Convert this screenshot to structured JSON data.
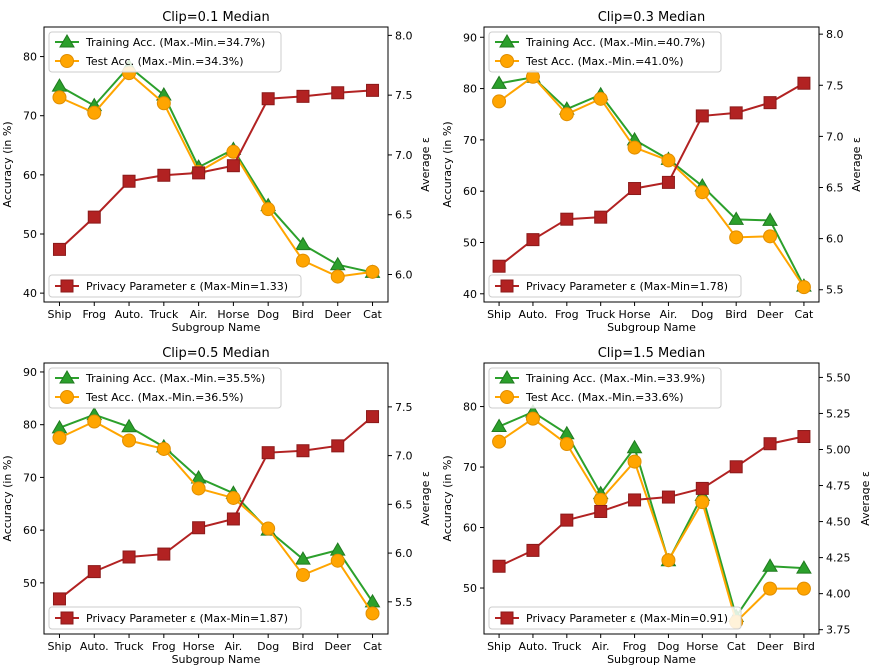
{
  "chart_data": [
    {
      "type": "line",
      "title": "Clip=0.1 Median",
      "xlabel": "Subgroup Name",
      "ylabel": "Accuracy (in %)",
      "y2label": "Average ε",
      "categories": [
        "Ship",
        "Frog",
        "Auto.",
        "Truck",
        "Air.",
        "Horse",
        "Dog",
        "Bird",
        "Deer",
        "Cat"
      ],
      "ylim": [
        38.5,
        85
      ],
      "y2lim": [
        5.77,
        8.07
      ],
      "yticks": [
        "40",
        "50",
        "60",
        "70",
        "80"
      ],
      "y2ticks": [
        "6.0",
        "6.5",
        "7.0",
        "7.5",
        "8.0"
      ],
      "legend_top": "top-left",
      "legend_bottom": "bottom-left",
      "series": [
        {
          "name": "Training Acc. (Max.-Min.=34.7%)",
          "axis": "left",
          "marker": "triangle",
          "color": "#2ca02c",
          "edge": "#1f7a1f",
          "values": [
            75.0,
            71.7,
            78.3,
            73.5,
            61.3,
            64.3,
            54.8,
            48.2,
            44.8,
            43.5
          ]
        },
        {
          "name": "Test Acc. (Max.-Min.=34.3%)",
          "axis": "left",
          "marker": "circle",
          "color": "#ffa500",
          "edge": "#e08e00",
          "values": [
            73.1,
            70.5,
            77.2,
            72.1,
            60.5,
            63.9,
            54.2,
            45.5,
            42.8,
            43.6
          ]
        },
        {
          "name": "Privacy Parameter ε (Max-Min=1.33)",
          "axis": "right",
          "marker": "square",
          "color": "#b22222",
          "edge": "#8b1a1a",
          "values": [
            6.21,
            6.48,
            6.78,
            6.83,
            6.85,
            6.91,
            7.47,
            7.49,
            7.52,
            7.54
          ]
        }
      ]
    },
    {
      "type": "line",
      "title": "Clip=0.3 Median",
      "xlabel": "Subgroup Name",
      "ylabel": "Accuracy (in %)",
      "y2label": "Average ε",
      "categories": [
        "Ship",
        "Auto.",
        "Frog",
        "Truck",
        "Horse",
        "Air.",
        "Dog",
        "Bird",
        "Deer",
        "Cat"
      ],
      "ylim": [
        38.4,
        92
      ],
      "y2lim": [
        5.38,
        8.07
      ],
      "yticks": [
        "40",
        "50",
        "60",
        "70",
        "80",
        "90"
      ],
      "y2ticks": [
        "5.5",
        "6.0",
        "6.5",
        "7.0",
        "7.5",
        "8.0"
      ],
      "legend_top": "top-left",
      "legend_bottom": "bottom-left",
      "series": [
        {
          "name": "Training Acc. (Max.-Min.=40.7%)",
          "axis": "left",
          "marker": "triangle",
          "color": "#2ca02c",
          "edge": "#1f7a1f",
          "values": [
            81.0,
            82.2,
            76.0,
            78.8,
            70.0,
            66.2,
            61.0,
            54.5,
            54.3,
            41.5
          ]
        },
        {
          "name": "Test Acc. (Max.-Min.=41.0%)",
          "axis": "left",
          "marker": "circle",
          "color": "#ffa500",
          "edge": "#e08e00",
          "values": [
            77.5,
            82.3,
            75.0,
            78.0,
            68.5,
            66.0,
            59.8,
            51.0,
            51.2,
            41.3
          ]
        },
        {
          "name": "Privacy Parameter ε (Max-Min=1.78)",
          "axis": "right",
          "marker": "square",
          "color": "#b22222",
          "edge": "#8b1a1a",
          "values": [
            5.73,
            5.99,
            6.19,
            6.21,
            6.49,
            6.55,
            7.2,
            7.23,
            7.33,
            7.52
          ]
        }
      ]
    },
    {
      "type": "line",
      "title": "Clip=0.5 Median",
      "xlabel": "Subgroup Name",
      "ylabel": "Accuracy (in %)",
      "y2label": "Average ε",
      "categories": [
        "Ship",
        "Auto.",
        "Truck",
        "Frog",
        "Horse",
        "Air.",
        "Dog",
        "Bird",
        "Deer",
        "Cat"
      ],
      "ylim": [
        40.3,
        91.7
      ],
      "y2lim": [
        5.17,
        7.95
      ],
      "yticks": [
        "50",
        "60",
        "70",
        "80",
        "90"
      ],
      "y2ticks": [
        "5.5",
        "6.0",
        "6.5",
        "7.0",
        "7.5"
      ],
      "legend_top": "top-left",
      "legend_bottom": "bottom-left",
      "series": [
        {
          "name": "Training Acc. (Max.-Min.=35.5%)",
          "axis": "left",
          "marker": "triangle",
          "color": "#2ca02c",
          "edge": "#1f7a1f",
          "values": [
            79.4,
            81.9,
            79.6,
            75.8,
            69.9,
            67.0,
            60.0,
            54.5,
            56.2,
            46.4
          ]
        },
        {
          "name": "Test Acc. (Max.-Min.=36.5%)",
          "axis": "left",
          "marker": "circle",
          "color": "#ffa500",
          "edge": "#e08e00",
          "values": [
            77.5,
            80.6,
            77.0,
            75.4,
            67.9,
            66.1,
            60.3,
            51.5,
            54.2,
            44.2
          ]
        },
        {
          "name": "Privacy Parameter ε (Max-Min=1.87)",
          "axis": "right",
          "marker": "square",
          "color": "#b22222",
          "edge": "#8b1a1a",
          "values": [
            5.53,
            5.81,
            5.96,
            5.99,
            6.26,
            6.35,
            7.03,
            7.05,
            7.1,
            7.4
          ]
        }
      ]
    },
    {
      "type": "line",
      "title": "Clip=1.5 Median",
      "xlabel": "Subgroup Name",
      "ylabel": "Accuracy (in %)",
      "y2label": "Average ε",
      "categories": [
        "Ship",
        "Auto.",
        "Truck",
        "Air.",
        "Frog",
        "Dog",
        "Horse",
        "Cat",
        "Deer",
        "Bird"
      ],
      "ylim": [
        42.4,
        87.2
      ],
      "y2lim": [
        3.72,
        5.6
      ],
      "yticks": [
        "50",
        "60",
        "70",
        "80"
      ],
      "y2ticks": [
        "3.75",
        "4.00",
        "4.25",
        "4.50",
        "4.75",
        "5.00",
        "5.25",
        "5.50"
      ],
      "legend_top": "top-left",
      "legend_bottom": "bottom-left",
      "series": [
        {
          "name": "Training Acc. (Max.-Min.=33.9%)",
          "axis": "left",
          "marker": "triangle",
          "color": "#2ca02c",
          "edge": "#1f7a1f",
          "values": [
            76.7,
            79.1,
            75.5,
            65.6,
            73.2,
            54.5,
            65.3,
            45.3,
            53.6,
            53.3
          ]
        },
        {
          "name": "Test Acc. (Max.-Min.=33.6%)",
          "axis": "left",
          "marker": "circle",
          "color": "#ffa500",
          "edge": "#e08e00",
          "values": [
            74.2,
            78.0,
            73.8,
            64.6,
            70.9,
            54.6,
            64.2,
            44.4,
            49.9,
            49.9
          ]
        },
        {
          "name": "Privacy Parameter ε (Max-Min=0.91)",
          "axis": "right",
          "marker": "square",
          "color": "#b22222",
          "edge": "#8b1a1a",
          "values": [
            4.19,
            4.3,
            4.51,
            4.57,
            4.65,
            4.67,
            4.73,
            4.88,
            5.04,
            5.09
          ]
        }
      ]
    }
  ]
}
